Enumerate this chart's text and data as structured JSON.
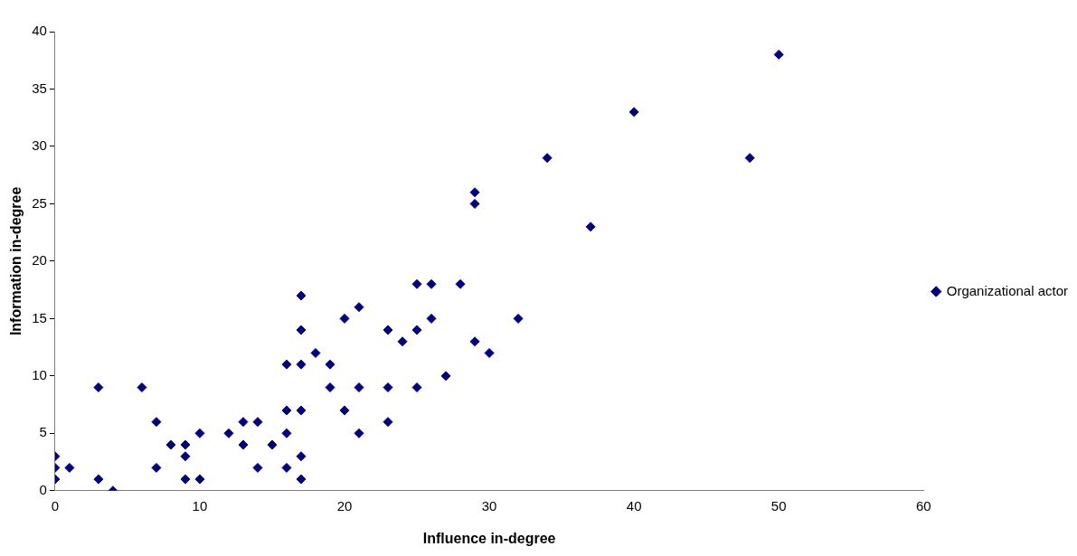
{
  "chart_data": {
    "type": "scatter",
    "xlabel": "Influence in-degree",
    "ylabel": "Information in-degree",
    "xlim": [
      0,
      60
    ],
    "xticks": [
      0,
      10,
      20,
      30,
      40,
      50,
      60
    ],
    "ylim": [
      0,
      40
    ],
    "yticks": [
      0,
      5,
      10,
      15,
      20,
      25,
      30,
      35,
      40
    ],
    "grid": false,
    "legend": "right",
    "marker": "diamond",
    "series": [
      {
        "name": "Organizational actor",
        "color": "#000080",
        "x": [
          0,
          0,
          0,
          1,
          3,
          3,
          4,
          6,
          7,
          7,
          8,
          9,
          9,
          9,
          10,
          10,
          12,
          13,
          13,
          14,
          14,
          15,
          16,
          16,
          16,
          16,
          17,
          17,
          17,
          17,
          17,
          17,
          18,
          19,
          19,
          20,
          20,
          21,
          21,
          21,
          23,
          23,
          23,
          24,
          25,
          25,
          25,
          26,
          26,
          27,
          28,
          29,
          29,
          29,
          30,
          32,
          34,
          37,
          40,
          48,
          50
        ],
        "values": [
          3,
          2,
          1,
          2,
          9,
          1,
          0,
          9,
          6,
          2,
          4,
          4,
          3,
          1,
          5,
          1,
          5,
          6,
          4,
          6,
          2,
          4,
          11,
          7,
          5,
          2,
          17,
          14,
          11,
          7,
          3,
          1,
          12,
          11,
          9,
          15,
          7,
          16,
          9,
          5,
          14,
          9,
          6,
          13,
          18,
          14,
          9,
          18,
          15,
          10,
          18,
          26,
          25,
          13,
          12,
          15,
          29,
          23,
          33,
          29,
          38
        ]
      }
    ]
  }
}
